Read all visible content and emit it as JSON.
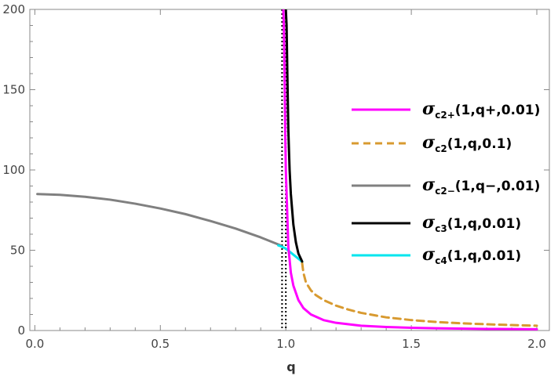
{
  "chart_data": {
    "type": "line",
    "title": "",
    "xlabel": "q",
    "ylabel": "",
    "xlim": [
      -0.02,
      2.05
    ],
    "ylim": [
      0,
      200
    ],
    "x_ticks": [
      "0.0",
      "0.5",
      "1.0",
      "1.5",
      "2.0"
    ],
    "y_ticks": [
      "0",
      "50",
      "100",
      "150",
      "200"
    ],
    "grid": false,
    "legend_position": "right",
    "vertical_lines": [
      {
        "x": 0.985,
        "style": "dotted",
        "color": "#000000"
      },
      {
        "x": 1.0,
        "style": "dotted",
        "color": "#000000"
      }
    ],
    "series": [
      {
        "name": "σc2+(1,q+,0.01)",
        "legend_symbol": "σ",
        "legend_subscript": "c2+",
        "legend_args": "(1,q+,0.01)",
        "color": "#ff00ff",
        "dash": "solid",
        "x": [
          0.99,
          0.992,
          0.995,
          0.998,
          1.0,
          1.01,
          1.02,
          1.03,
          1.05,
          1.07,
          1.1,
          1.15,
          1.2,
          1.3,
          1.4,
          1.5,
          1.6,
          1.8,
          2.0
        ],
        "y": [
          200,
          190,
          160,
          120,
          100,
          52,
          36,
          28,
          19,
          14,
          10,
          6.5,
          4.8,
          3.0,
          2.2,
          1.7,
          1.4,
          1.0,
          0.8
        ]
      },
      {
        "name": "σc2(1,q,0.1)",
        "legend_symbol": "σ",
        "legend_subscript": "c2",
        "legend_args": "(1,q,0.1)",
        "color": "#d89a30",
        "dash": "dashed",
        "x": [
          1.065,
          1.07,
          1.08,
          1.1,
          1.12,
          1.15,
          1.2,
          1.25,
          1.3,
          1.4,
          1.5,
          1.6,
          1.7,
          1.8,
          1.9,
          2.0
        ],
        "y": [
          42,
          36,
          30,
          25,
          22,
          19,
          15.5,
          13,
          11,
          8.2,
          6.5,
          5.3,
          4.5,
          3.9,
          3.4,
          3.0
        ]
      },
      {
        "name": "σc2−(1,q−,0.01)",
        "legend_symbol": "σ",
        "legend_subscript": "c2−",
        "legend_args": "(1,q−,0.01)",
        "color": "#808080",
        "dash": "solid",
        "x": [
          0.01,
          0.1,
          0.2,
          0.3,
          0.4,
          0.5,
          0.6,
          0.7,
          0.8,
          0.9,
          0.98
        ],
        "y": [
          85,
          84.5,
          83.3,
          81.5,
          79.0,
          76.0,
          72.5,
          68.2,
          63.5,
          58.0,
          53.0
        ]
      },
      {
        "name": "σc3(1,q,0.01)",
        "legend_symbol": "σ",
        "legend_subscript": "c3",
        "legend_args": "(1,q,0.01)",
        "color": "#000000",
        "dash": "solid",
        "x": [
          1.0,
          1.003,
          1.006,
          1.01,
          1.015,
          1.02,
          1.03,
          1.04,
          1.05,
          1.065
        ],
        "y": [
          200,
          190,
          160,
          125,
          100,
          85,
          66,
          55,
          48,
          43
        ]
      },
      {
        "name": "σc4(1,q,0.01)",
        "legend_symbol": "σ",
        "legend_subscript": "c4",
        "legend_args": "(1,q,0.01)",
        "color": "#00e5ee",
        "dash": "solid",
        "x": [
          0.97,
          0.98,
          0.99,
          1.0,
          1.02,
          1.04,
          1.06,
          1.065
        ],
        "y": [
          53,
          52.5,
          51.8,
          51,
          48.5,
          46,
          43.5,
          42.5
        ]
      }
    ]
  }
}
